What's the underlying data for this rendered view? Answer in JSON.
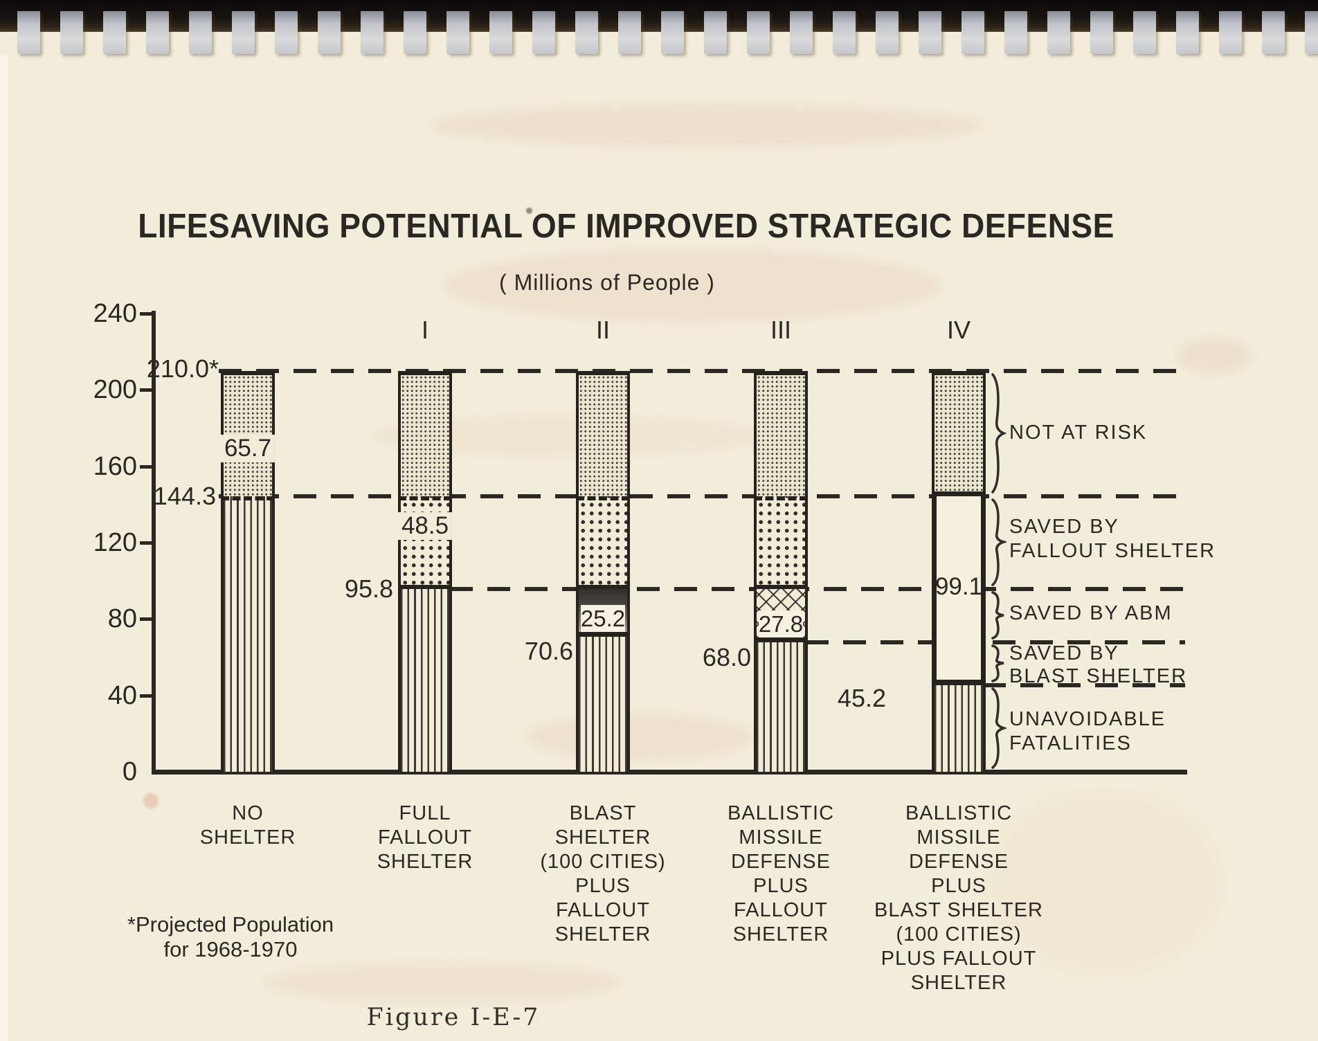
{
  "page": {
    "paper_color": "#f2edda",
    "ink_color": "#2b2824",
    "binding_color": "#14100c",
    "binding_tab_color": "#c9cbd0"
  },
  "chart_data": {
    "type": "bar",
    "stacked": true,
    "title": "LIFESAVING POTENTIAL OF IMPROVED STRATEGIC DEFENSE",
    "subtitle": "( Millions of People )",
    "unit": "millions of people",
    "ylim": [
      0,
      240
    ],
    "y_ticks": [
      240,
      200,
      160,
      120,
      80,
      40,
      0
    ],
    "grid": "horizontal dashed reference lines at 210.0, 144.3, 95.8, 68.0 and 45.2",
    "legend_position": "right",
    "total_projected_population": 210.0,
    "footnote_line1": "*Projected Population",
    "footnote_line2": "for 1968-1970",
    "figure_caption": "Figure I-E-7",
    "reference_levels": [
      210.0,
      144.3,
      95.8,
      70.6,
      68.0,
      45.2
    ],
    "region_labels": [
      {
        "lines": [
          "NOT AT RISK"
        ],
        "band": [
          144.3,
          210.0
        ]
      },
      {
        "lines": [
          "SAVED BY",
          "FALLOUT SHELTER"
        ],
        "band": [
          95.8,
          144.3
        ]
      },
      {
        "lines": [
          "SAVED BY ABM"
        ],
        "band": [
          68.0,
          95.8
        ]
      },
      {
        "lines": [
          "SAVED BY",
          "BLAST SHELTER"
        ],
        "band": [
          45.2,
          68.0
        ]
      },
      {
        "lines": [
          "UNAVOIDABLE",
          "FATALITIES"
        ],
        "band": [
          0,
          45.2
        ]
      }
    ],
    "bars": [
      {
        "numeral": "",
        "category_lines": [
          "NO",
          "SHELTER"
        ],
        "segments": [
          {
            "name": "not-at-risk",
            "pattern": "fine-dots",
            "from": 144.3,
            "to": 210.0,
            "value": 65.7,
            "label": "65.7"
          },
          {
            "name": "unavoidable-fatalities",
            "pattern": "vertical-lines",
            "from": 0,
            "to": 144.3,
            "value": 144.3
          }
        ],
        "level_labels": [
          {
            "text": "210.0*",
            "level": 210.0
          },
          {
            "text": "144.3",
            "level": 144.3
          }
        ]
      },
      {
        "numeral": "I",
        "category_lines": [
          "FULL",
          "FALLOUT",
          "SHELTER"
        ],
        "segments": [
          {
            "name": "not-at-risk",
            "pattern": "fine-dots",
            "from": 144.3,
            "to": 210.0,
            "value": 65.7
          },
          {
            "name": "saved-by-fallout-shelter",
            "pattern": "coarse-dots",
            "from": 95.8,
            "to": 144.3,
            "value": 48.5,
            "label": "48.5"
          },
          {
            "name": "unavoidable-fatalities",
            "pattern": "vertical-lines",
            "from": 0,
            "to": 95.8,
            "value": 95.8
          }
        ],
        "level_labels": [
          {
            "text": "95.8",
            "level": 95.8
          }
        ]
      },
      {
        "numeral": "II",
        "category_lines": [
          "BLAST",
          "SHELTER",
          "(100 CITIES)",
          "PLUS",
          "FALLOUT",
          "SHELTER"
        ],
        "segments": [
          {
            "name": "not-at-risk",
            "pattern": "fine-dots",
            "from": 144.3,
            "to": 210.0,
            "value": 65.7
          },
          {
            "name": "saved-by-fallout-shelter",
            "pattern": "coarse-dots",
            "from": 95.8,
            "to": 144.3,
            "value": 48.5
          },
          {
            "name": "saved-by-blast-shelter",
            "pattern": "solid-dark",
            "from": 70.6,
            "to": 95.8,
            "value": 25.2,
            "label": "25.2"
          },
          {
            "name": "unavoidable-fatalities",
            "pattern": "vertical-lines",
            "from": 0,
            "to": 70.6,
            "value": 70.6
          }
        ],
        "level_labels": [
          {
            "text": "70.6",
            "level": 70.6
          }
        ]
      },
      {
        "numeral": "III",
        "category_lines": [
          "BALLISTIC",
          "MISSILE",
          "DEFENSE",
          "PLUS",
          "FALLOUT",
          "SHELTER"
        ],
        "segments": [
          {
            "name": "not-at-risk",
            "pattern": "fine-dots",
            "from": 144.3,
            "to": 210.0,
            "value": 65.7
          },
          {
            "name": "saved-by-fallout-shelter",
            "pattern": "coarse-dots",
            "from": 95.8,
            "to": 144.3,
            "value": 48.5
          },
          {
            "name": "saved-by-abm",
            "pattern": "crosshatch",
            "from": 68.0,
            "to": 95.8,
            "value": 27.8,
            "label": "27.8"
          },
          {
            "name": "unavoidable-fatalities",
            "pattern": "vertical-lines",
            "from": 0,
            "to": 68.0,
            "value": 68.0
          }
        ],
        "level_labels": [
          {
            "text": "68.0",
            "level": 68.0
          }
        ]
      },
      {
        "numeral": "IV",
        "category_lines": [
          "BALLISTIC",
          "MISSILE",
          "DEFENSE",
          "PLUS",
          "BLAST SHELTER",
          "(100 CITIES)",
          "PLUS FALLOUT",
          "SHELTER"
        ],
        "segments": [
          {
            "name": "not-at-risk",
            "pattern": "fine-dots",
            "from": 144.3,
            "to": 210.0,
            "value": 65.7
          },
          {
            "name": "total-saved",
            "pattern": "open",
            "from": 45.2,
            "to": 144.3,
            "value": 99.1,
            "label": "99.1"
          },
          {
            "name": "unavoidable-fatalities",
            "pattern": "vertical-lines",
            "from": 0,
            "to": 45.2,
            "value": 45.2
          }
        ],
        "level_labels": [
          {
            "text": "45.2",
            "level": 45.2
          }
        ]
      }
    ]
  }
}
